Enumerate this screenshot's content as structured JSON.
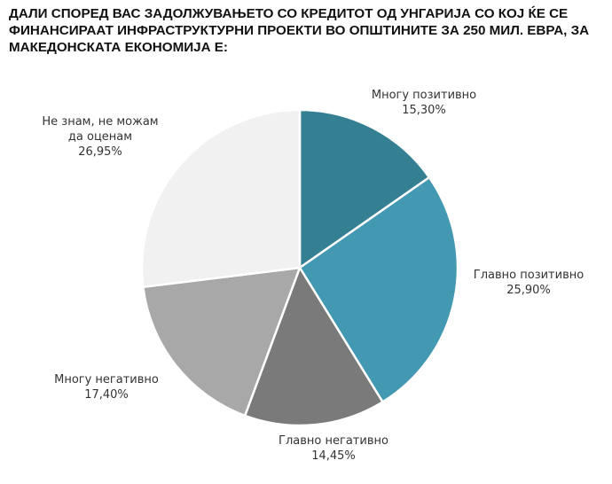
{
  "title_lines": [
    "ДАЛИ СПОРЕД ВАС ЗАДОЛЖУВАЊЕТО СО КРЕДИТОТ ОД УНГАРИЈА СО КОЈ ЌЕ СЕ",
    "ФИНАНСИРААТ ИНФРАСТРУКТУРНИ ПРОЕКТИ ВО ОПШТИНИТЕ ЗА 250 МИЛ. ЕВРА, ЗА",
    "МАКЕДОНСКАТА ЕКОНОМИЈА Е:"
  ],
  "chart_data": {
    "type": "pie",
    "title": "ДАЛИ СПОРЕД ВАС ЗАДОЛЖУВАЊЕТО СО КРЕДИТОТ ОД УНГАРИЈА СО КОЈ ЌЕ СЕ ФИНАНСИРААТ ИНФРАСТРУКТУРНИ ПРОЕКТИ ВО ОПШТИНИТЕ ЗА 250 МИЛ. ЕВРА, ЗА МАКЕДОНСКАТА ЕКОНОМИЈА Е:",
    "start_angle_deg": 0,
    "direction": "clockwise",
    "slices": [
      {
        "label": "Многу позитивно",
        "value": 15.3,
        "value_label": "15,30%",
        "color": "#357F93"
      },
      {
        "label": "Главно позитивно",
        "value": 25.9,
        "value_label": "25,90%",
        "color": "#4499B2"
      },
      {
        "label": "Главно негативно",
        "value": 14.45,
        "value_label": "14,45%",
        "color": "#7A7A7A"
      },
      {
        "label": "Многу негативно",
        "value": 17.4,
        "value_label": "17,40%",
        "color": "#A8A8A8"
      },
      {
        "label": "Не знам, не можам да оценам",
        "label_lines": [
          "Не знам, не можам",
          "да оценам"
        ],
        "value": 26.95,
        "value_label": "26,95%",
        "color": "#F1F1F2"
      }
    ],
    "legend": "none",
    "data_labels": "outside, category name and percentage"
  }
}
